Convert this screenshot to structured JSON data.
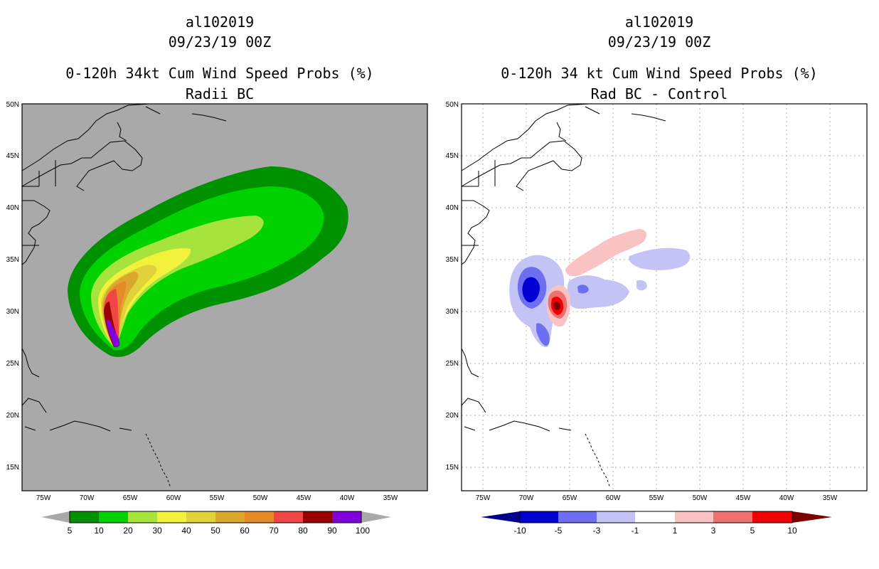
{
  "colors": {
    "ocean_left": "#a9a9a9",
    "ocean_right": "#ffffff",
    "land": "none",
    "coast": "#000000",
    "grid": "#b0b0b0"
  },
  "left_panel": {
    "title1": "al102019",
    "title2": "09/23/19 00Z",
    "title3": "0-120h 34kt Cum Wind Speed Probs (%)",
    "title4": "Radii BC",
    "lat_labels": [
      "50N",
      "45N",
      "40N",
      "35N",
      "30N",
      "25N",
      "20N",
      "15N"
    ],
    "lon_labels": [
      "75W",
      "70W",
      "65W",
      "60W",
      "55W",
      "50W",
      "45W",
      "40W",
      "35W"
    ],
    "colorbar": {
      "labels": [
        "5",
        "10",
        "20",
        "30",
        "40",
        "50",
        "60",
        "70",
        "80",
        "90",
        "100"
      ],
      "colors": [
        "#009100",
        "#00d200",
        "#a6e33c",
        "#f2f23c",
        "#e1d13a",
        "#dca72d",
        "#e68a28",
        "#f04646",
        "#9a0000",
        "#8200dc"
      ],
      "under": "#a9a9a9",
      "over": "#a9a9a9"
    }
  },
  "right_panel": {
    "title1": "al102019",
    "title2": "09/23/19 00Z",
    "title3": "0-120h 34 kt Cum Wind Speed Probs (%)",
    "title4": "Rad BC - Control",
    "lat_labels": [
      "50N",
      "45N",
      "40N",
      "35N",
      "30N",
      "25N",
      "20N",
      "15N"
    ],
    "lon_labels": [
      "75W",
      "70W",
      "65W",
      "60W",
      "55W",
      "50W",
      "45W",
      "40W",
      "35W"
    ],
    "colorbar": {
      "labels": [
        "-10",
        "-5",
        "-3",
        "-1",
        "1",
        "3",
        "5",
        "10"
      ],
      "colors": [
        "#0000d2",
        "#6e6ef0",
        "#c3c3f5",
        "#ffffff",
        "#f9c3c3",
        "#f07070",
        "#f00000"
      ],
      "under": "#00008c",
      "over": "#7d0000"
    }
  }
}
